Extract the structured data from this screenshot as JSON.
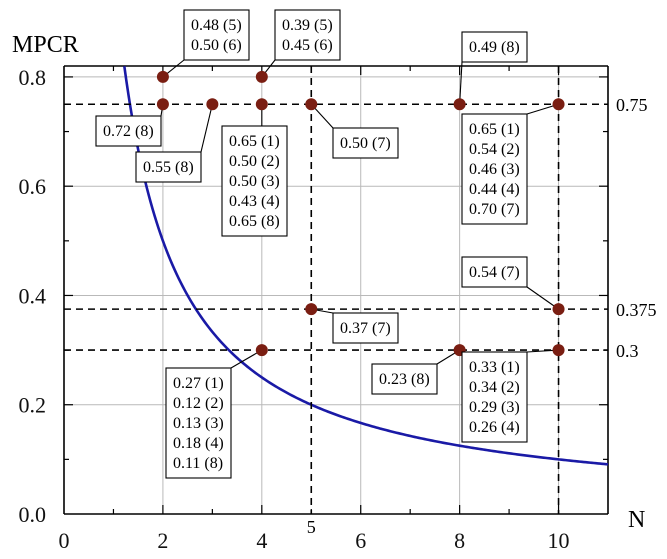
{
  "chart_data": {
    "type": "scatter",
    "title": "",
    "xlabel": "N",
    "ylabel": "MPCR",
    "xlim": [
      0,
      11
    ],
    "ylim": [
      0,
      0.82
    ],
    "x_ticks": [
      "0",
      "2",
      "4",
      "6",
      "8",
      "10"
    ],
    "y_ticks": [
      "0.0",
      "0.2",
      "0.4",
      "0.6",
      "0.8"
    ],
    "grid": true,
    "curve": {
      "formula": "MPCR = 1/N",
      "color": "#1a1aa6",
      "x_range": [
        1.22,
        11
      ]
    },
    "reference_lines": {
      "horizontal": [
        {
          "y": 0.75,
          "label": "0.75"
        },
        {
          "y": 0.375,
          "label": "0.375"
        },
        {
          "y": 0.3,
          "label": "0.3"
        }
      ],
      "vertical": [
        {
          "x": 5,
          "label": "5"
        },
        {
          "x": 10,
          "label": ""
        }
      ]
    },
    "points": [
      {
        "x": 2,
        "y": 0.8
      },
      {
        "x": 4,
        "y": 0.8
      },
      {
        "x": 2,
        "y": 0.75
      },
      {
        "x": 3,
        "y": 0.75
      },
      {
        "x": 4,
        "y": 0.75
      },
      {
        "x": 5,
        "y": 0.75
      },
      {
        "x": 8,
        "y": 0.75
      },
      {
        "x": 10,
        "y": 0.75
      },
      {
        "x": 5,
        "y": 0.375
      },
      {
        "x": 10,
        "y": 0.375
      },
      {
        "x": 4,
        "y": 0.3
      },
      {
        "x": 8,
        "y": 0.3
      },
      {
        "x": 10,
        "y": 0.3
      }
    ],
    "annotations": [
      {
        "point": [
          2,
          0.8
        ],
        "lines": [
          "0.48 (5)",
          "0.50 (6)"
        ]
      },
      {
        "point": [
          4,
          0.8
        ],
        "lines": [
          "0.39 (5)",
          "0.45 (6)"
        ]
      },
      {
        "point": [
          8,
          0.75
        ],
        "lines": [
          "0.49 (8)"
        ]
      },
      {
        "point": [
          2,
          0.75
        ],
        "lines": [
          "0.72 (8)"
        ]
      },
      {
        "point": [
          3,
          0.75
        ],
        "lines": [
          "0.55 (8)"
        ]
      },
      {
        "point": [
          4,
          0.75
        ],
        "lines": [
          "0.65 (1)",
          "0.50 (2)",
          "0.50 (3)",
          "0.43 (4)",
          "0.65 (8)"
        ]
      },
      {
        "point": [
          5,
          0.75
        ],
        "lines": [
          "0.50 (7)"
        ]
      },
      {
        "point": [
          10,
          0.75
        ],
        "lines": [
          "0.65 (1)",
          "0.54 (2)",
          "0.46 (3)",
          "0.44 (4)",
          "0.70 (7)"
        ]
      },
      {
        "point": [
          10,
          0.375
        ],
        "lines": [
          "0.54 (7)"
        ]
      },
      {
        "point": [
          5,
          0.375
        ],
        "lines": [
          "0.37 (7)"
        ]
      },
      {
        "point": [
          4,
          0.3
        ],
        "lines": [
          "0.27 (1)",
          "0.12 (2)",
          "0.13 (3)",
          "0.18 (4)",
          "0.11 (8)"
        ]
      },
      {
        "point": [
          8,
          0.3
        ],
        "lines": [
          "0.23 (8)"
        ]
      },
      {
        "point": [
          10,
          0.3
        ],
        "lines": [
          "0.33 (1)",
          "0.34 (2)",
          "0.29 (3)",
          "0.26 (4)"
        ]
      }
    ],
    "colors": {
      "point": "#7a1e12",
      "curve": "#1a1aa6",
      "grid": "#b9b9b9"
    }
  }
}
